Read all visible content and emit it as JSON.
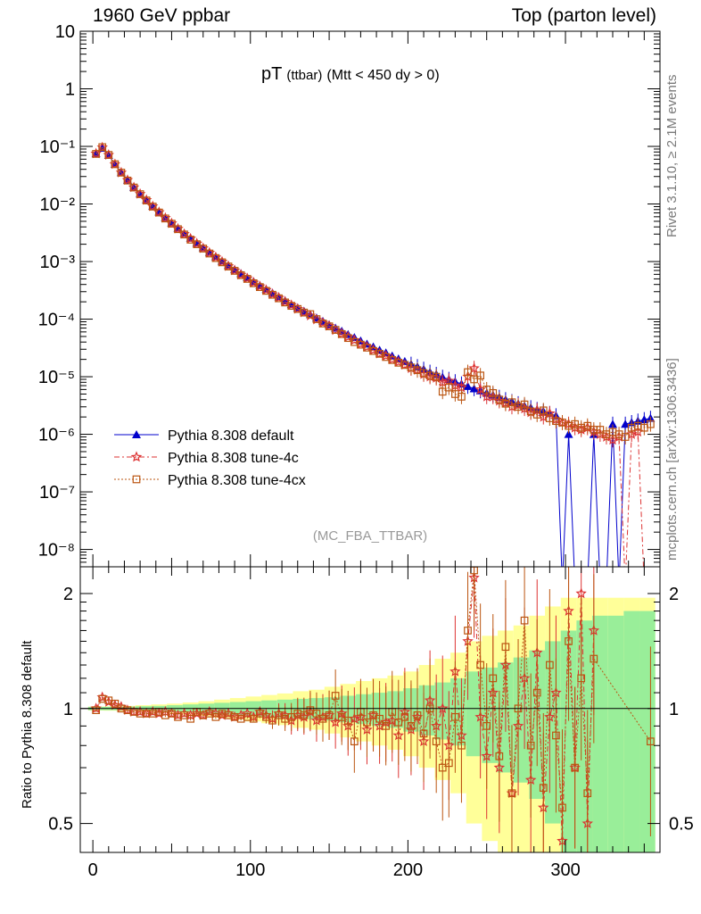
{
  "header": {
    "left": "1960 GeV ppbar",
    "right": "Top (parton level)"
  },
  "side_labels": {
    "rivet": "Rivet 3.1.10, ≥ 2.1M events",
    "mcplots": "mcplots.cern.ch [arXiv:1306.3436]"
  },
  "colors": {
    "default": "#0000cc",
    "tune4c": "#dd3333",
    "tune4cx": "#bb5511",
    "band_inner": "#99ee99",
    "band_outer": "#ffff99"
  },
  "chart_data": [
    {
      "type": "scatter",
      "title": "pT",
      "title_sub": "(ttbar)",
      "title_cut": "(Mtt < 450 dy > 0)",
      "watermark": "(MC_FBA_TTBAR)",
      "y_scale": "log",
      "xlim": [
        -8,
        360
      ],
      "ylim": [
        5e-09,
        10
      ],
      "y_tick_labels": [
        "10",
        "1",
        "10⁻¹",
        "10⁻²",
        "10⁻³",
        "10⁻⁴",
        "10⁻⁵",
        "10⁻⁶",
        "10⁻⁷",
        "10⁻⁸"
      ],
      "legend_position": "bottom-left",
      "series": [
        {
          "name": "Pythia 8.308 default",
          "marker": "triangle",
          "x": [
            2,
            6,
            10,
            14,
            18,
            22,
            26,
            30,
            34,
            38,
            42,
            46,
            50,
            54,
            58,
            62,
            66,
            70,
            74,
            78,
            82,
            86,
            90,
            94,
            98,
            102,
            106,
            110,
            114,
            118,
            122,
            126,
            130,
            134,
            138,
            142,
            146,
            150,
            154,
            158,
            162,
            166,
            170,
            174,
            178,
            182,
            186,
            190,
            194,
            198,
            202,
            206,
            210,
            214,
            218,
            222,
            226,
            230,
            234,
            238,
            242,
            246,
            250,
            254,
            258,
            262,
            266,
            270,
            274,
            278,
            282,
            286,
            290,
            294,
            298,
            302,
            306,
            310,
            314,
            318,
            322,
            326,
            330,
            334,
            338,
            342,
            346,
            350,
            354
          ],
          "values": [
            0.075,
            0.093,
            0.07,
            0.049,
            0.035,
            0.026,
            0.0195,
            0.015,
            0.0118,
            0.0092,
            0.0073,
            0.0058,
            0.0047,
            0.0038,
            0.0031,
            0.00255,
            0.0021,
            0.00175,
            0.00145,
            0.00122,
            0.00102,
            0.00086,
            0.00073,
            0.00062,
            0.00053,
            0.00045,
            0.000385,
            0.00033,
            0.000285,
            0.000245,
            0.00021,
            0.00018,
            0.000158,
            0.000138,
            0.00012,
            0.000105,
            9.2e-05,
            8e-05,
            7e-05,
            6.2e-05,
            5.4e-05,
            4.8e-05,
            4.2e-05,
            3.7e-05,
            3.3e-05,
            2.9e-05,
            2.6e-05,
            2.3e-05,
            2.05e-05,
            1.85e-05,
            1.65e-05,
            1.5e-05,
            1.35e-05,
            1.2e-05,
            1.1e-05,
            9.8e-06,
            9e-06,
            8.2e-06,
            7.5e-06,
            6.8e-06,
            6.2e-06,
            5.7e-06,
            5.2e-06,
            4.8e-06,
            4.4e-06,
            4e-06,
            3.7e-06,
            3.4e-06,
            3.1e-06,
            2.9e-06,
            2.7e-06,
            2.5e-06,
            2.3e-06,
            2.1e-06,
            0,
            1e-06,
            0,
            0,
            0,
            1e-06,
            0,
            0,
            1.5e-06,
            0,
            1.5e-06,
            1.6e-06,
            1.7e-06,
            1.8e-06,
            1.9e-06
          ]
        },
        {
          "name": "Pythia 8.308 tune-4c",
          "marker": "star",
          "x": [
            2,
            6,
            10,
            14,
            18,
            22,
            26,
            30,
            34,
            38,
            42,
            46,
            50,
            54,
            58,
            62,
            66,
            70,
            74,
            78,
            82,
            86,
            90,
            94,
            98,
            102,
            106,
            110,
            114,
            118,
            122,
            126,
            130,
            134,
            138,
            142,
            146,
            150,
            154,
            158,
            162,
            166,
            170,
            174,
            178,
            182,
            186,
            190,
            194,
            198,
            202,
            206,
            210,
            214,
            218,
            222,
            226,
            230,
            234,
            238,
            242,
            246,
            250,
            254,
            258,
            262,
            266,
            270,
            274,
            278,
            282,
            286,
            290,
            294,
            298,
            302,
            306,
            310,
            314,
            318,
            322,
            326,
            330,
            334,
            338,
            342,
            346,
            350,
            354
          ],
          "values": [
            0.075,
            0.096,
            0.071,
            0.049,
            0.035,
            0.026,
            0.0194,
            0.0149,
            0.0117,
            0.0091,
            0.0072,
            0.0057,
            0.0046,
            0.0037,
            0.003,
            0.0025,
            0.00205,
            0.0017,
            0.00142,
            0.00118,
            0.00099,
            0.00083,
            0.0007,
            0.00059,
            0.00051,
            0.00043,
            0.00037,
            0.00032,
            0.00027,
            0.000235,
            0.0002,
            0.000175,
            0.00015,
            0.00013,
            0.000115,
            9.8e-05,
            8.6e-05,
            7.6e-05,
            6.4e-05,
            5.6e-05,
            4.9e-05,
            4.3e-05,
            3.7e-05,
            3.3e-05,
            2.9e-05,
            2.5e-05,
            2.3e-05,
            2e-05,
            1.8e-05,
            1.6e-05,
            1.4e-05,
            1.3e-05,
            1.1e-05,
            1e-05,
            9.5e-06,
            8e-06,
            8.5e-06,
            7e-06,
            6.5e-06,
            1e-05,
            1.4e-05,
            6e-06,
            4.5e-06,
            4.5e-06,
            3.8e-06,
            3.5e-06,
            3e-06,
            3.2e-06,
            2.8e-06,
            2.4e-06,
            2.6e-06,
            2e-06,
            2.3e-06,
            1.8e-06,
            1.6e-06,
            1.5e-06,
            1.3e-06,
            1.2e-06,
            1.3e-06,
            1.1e-06,
            1e-06,
            9e-07,
            8e-07,
            9e-07,
            0,
            1e-06,
            1.1e-06,
            0,
            0
          ]
        },
        {
          "name": "Pythia 8.308 tune-4cx",
          "marker": "open-square",
          "x": [
            2,
            6,
            10,
            14,
            18,
            22,
            26,
            30,
            34,
            38,
            42,
            46,
            50,
            54,
            58,
            62,
            66,
            70,
            74,
            78,
            82,
            86,
            90,
            94,
            98,
            102,
            106,
            110,
            114,
            118,
            122,
            126,
            130,
            134,
            138,
            142,
            146,
            150,
            154,
            158,
            162,
            166,
            170,
            174,
            178,
            182,
            186,
            190,
            194,
            198,
            202,
            206,
            210,
            214,
            218,
            222,
            226,
            230,
            234,
            238,
            242,
            246,
            250,
            254,
            258,
            262,
            266,
            270,
            274,
            278,
            282,
            286,
            290,
            294,
            298,
            302,
            306,
            310,
            314,
            318,
            322,
            326,
            330,
            334,
            338,
            342,
            346,
            350,
            354
          ],
          "values": [
            0.074,
            0.097,
            0.071,
            0.049,
            0.035,
            0.0255,
            0.0193,
            0.0148,
            0.0115,
            0.009,
            0.0071,
            0.0056,
            0.00455,
            0.00365,
            0.00295,
            0.0024,
            0.002,
            0.00168,
            0.00138,
            0.00115,
            0.00097,
            0.00082,
            0.00069,
            0.00058,
            0.0005,
            0.00042,
            0.00036,
            0.00031,
            0.000265,
            0.00023,
            0.000195,
            0.00017,
            0.00015,
            0.00013,
            0.000122,
            0.0001,
            8.4e-05,
            7.5e-05,
            6.5e-05,
            5.5e-05,
            4.7e-05,
            4e-05,
            3.6e-05,
            3.2e-05,
            2.8e-05,
            2.5e-05,
            2.2e-05,
            1.95e-05,
            1.75e-05,
            1.6e-05,
            1.45e-05,
            1.3e-05,
            1.15e-05,
            1.05e-05,
            1e-05,
            5.5e-06,
            6.5e-06,
            5e-06,
            4.5e-06,
            1.2e-05,
            9e-06,
            1.05e-05,
            6e-06,
            5.2e-06,
            4e-06,
            3.4e-06,
            3.6e-06,
            3e-06,
            3.3e-06,
            2.5e-06,
            2.2e-06,
            2.6e-06,
            1.9e-06,
            1.7e-06,
            1.6e-06,
            1.4e-06,
            1.5e-06,
            1.3e-06,
            1.4e-06,
            1.2e-06,
            1.2e-06,
            1e-06,
            1.1e-06,
            1e-06,
            9e-07,
            1.3e-06,
            1.4e-06,
            1.3e-06,
            1.5e-06
          ]
        }
      ]
    },
    {
      "type": "scatter",
      "ylabel": "Ratio to Pythia 8.308 default",
      "y_scale": "log",
      "xlim": [
        -8,
        360
      ],
      "ylim": [
        0.42,
        2.35
      ],
      "y_ticks": [
        0.5,
        1,
        2
      ],
      "x_ticks": [
        0,
        100,
        200,
        300
      ],
      "reference_line": 1,
      "band_x": [
        2,
        12,
        22,
        32,
        42,
        52,
        62,
        72,
        82,
        92,
        102,
        112,
        122,
        132,
        142,
        152,
        162,
        172,
        182,
        192,
        202,
        212,
        222,
        232,
        242,
        252,
        262,
        272,
        282,
        292,
        302,
        312,
        322,
        332,
        342,
        352
      ],
      "band_inner": [
        0.01,
        0.01,
        0.012,
        0.014,
        0.016,
        0.02,
        0.025,
        0.03,
        0.035,
        0.04,
        0.045,
        0.05,
        0.055,
        0.06,
        0.065,
        0.07,
        0.08,
        0.09,
        0.1,
        0.11,
        0.13,
        0.15,
        0.17,
        0.2,
        0.25,
        0.28,
        0.32,
        0.36,
        0.42,
        0.5,
        0.6,
        0.7,
        0.75,
        0.75,
        0.8,
        0.8
      ],
      "band_outer": [
        0.012,
        0.013,
        0.016,
        0.02,
        0.025,
        0.03,
        0.037,
        0.045,
        0.055,
        0.065,
        0.075,
        0.085,
        0.095,
        0.11,
        0.12,
        0.14,
        0.16,
        0.18,
        0.2,
        0.22,
        0.25,
        0.3,
        0.35,
        0.4,
        0.5,
        0.55,
        0.6,
        0.65,
        0.75,
        0.85,
        0.95,
        0.95,
        0.95,
        0.95,
        0.95,
        0.95
      ],
      "series": [
        {
          "name": "Pythia 8.308 tune-4c",
          "x": [
            2,
            6,
            10,
            14,
            18,
            22,
            26,
            30,
            34,
            38,
            42,
            46,
            50,
            54,
            58,
            62,
            66,
            70,
            74,
            78,
            82,
            86,
            90,
            94,
            98,
            102,
            106,
            110,
            114,
            118,
            122,
            126,
            130,
            134,
            138,
            142,
            146,
            150,
            154,
            158,
            162,
            166,
            170,
            174,
            178,
            182,
            186,
            190,
            194,
            198,
            202,
            206,
            210,
            214,
            218,
            222,
            226,
            230,
            234,
            238,
            242,
            246,
            250,
            254,
            258,
            262,
            266,
            270,
            274,
            278,
            282,
            286,
            290,
            294,
            298,
            302,
            306,
            310,
            314,
            318
          ],
          "values": [
            1.0,
            1.07,
            1.04,
            1.02,
            1.01,
            0.99,
            0.98,
            0.98,
            0.97,
            0.98,
            0.97,
            0.98,
            0.97,
            0.96,
            0.97,
            0.96,
            0.97,
            0.96,
            0.98,
            0.97,
            0.96,
            0.97,
            0.95,
            0.96,
            0.97,
            0.95,
            0.98,
            0.96,
            0.94,
            0.97,
            0.96,
            0.93,
            0.96,
            0.95,
            0.98,
            0.93,
            0.95,
            0.96,
            0.92,
            0.97,
            0.9,
            0.94,
            0.95,
            0.88,
            0.96,
            0.9,
            0.92,
            0.93,
            0.85,
            0.98,
            0.88,
            0.95,
            0.82,
            1.05,
            0.9,
            1.0,
            0.8,
            1.25,
            0.85,
            1.5,
            2.2,
            0.95,
            0.75,
            1.1,
            0.7,
            1.3,
            0.6,
            0.9,
            1.2,
            0.65,
            1.4,
            0.55,
            0.95,
            1.1,
            0.45,
            1.8,
            0.7,
            2.0,
            0.5,
            1.6
          ]
        },
        {
          "name": "Pythia 8.308 tune-4cx",
          "x": [
            2,
            6,
            10,
            14,
            18,
            22,
            26,
            30,
            34,
            38,
            42,
            46,
            50,
            54,
            58,
            62,
            66,
            70,
            74,
            78,
            82,
            86,
            90,
            94,
            98,
            102,
            106,
            110,
            114,
            118,
            122,
            126,
            130,
            134,
            138,
            142,
            146,
            150,
            154,
            158,
            162,
            166,
            170,
            174,
            178,
            182,
            186,
            190,
            194,
            198,
            202,
            206,
            210,
            214,
            218,
            222,
            226,
            230,
            234,
            238,
            242,
            246,
            250,
            254,
            258,
            262,
            266,
            270,
            274,
            278,
            282,
            286,
            290,
            294,
            298,
            302,
            306,
            310,
            314,
            318,
            354
          ],
          "values": [
            0.99,
            1.06,
            1.05,
            1.03,
            1.0,
            0.99,
            0.98,
            0.97,
            0.97,
            0.97,
            0.98,
            0.96,
            0.97,
            0.95,
            0.96,
            0.94,
            0.98,
            0.96,
            0.97,
            0.95,
            0.97,
            0.96,
            0.95,
            0.94,
            0.95,
            0.94,
            0.97,
            0.95,
            0.93,
            0.96,
            0.94,
            0.95,
            0.97,
            0.96,
            0.99,
            0.97,
            0.94,
            0.96,
            1.08,
            0.95,
            0.93,
            0.82,
            0.98,
            0.92,
            0.96,
            0.94,
            0.9,
            0.98,
            0.92,
            0.95,
            0.9,
            0.96,
            0.86,
            1.0,
            0.82,
            0.7,
            0.72,
            0.95,
            0.8,
            1.6,
            2.3,
            1.3,
            0.9,
            1.2,
            0.75,
            1.45,
            0.6,
            1.0,
            1.7,
            0.8,
            1.1,
            0.62,
            1.3,
            0.85,
            0.55,
            1.5,
            0.7,
            1.2,
            0.6,
            1.35,
            0.82
          ]
        }
      ]
    }
  ]
}
